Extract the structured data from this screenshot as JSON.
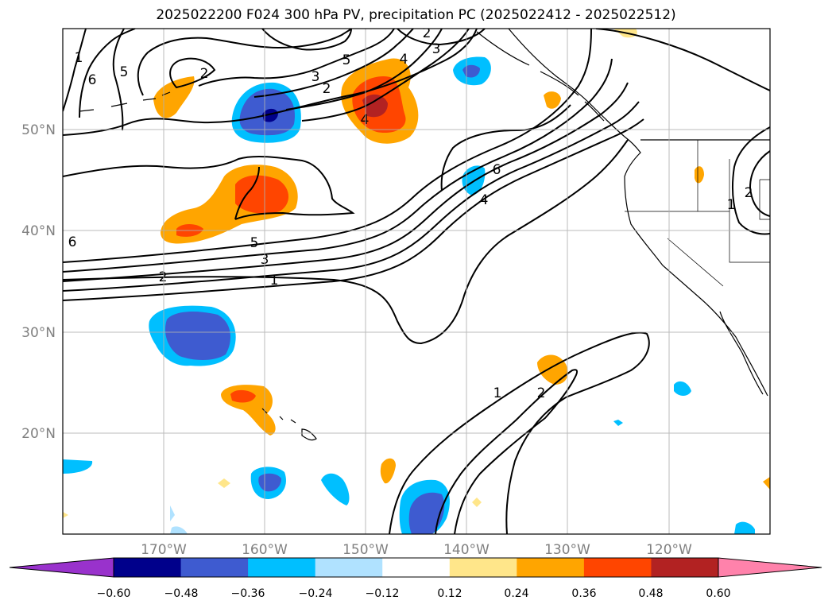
{
  "figure": {
    "title": "2025022200 F024 300 hPa PV, precipitation PC (2025022412 - 2025022512)"
  },
  "map": {
    "projection": "PlateCarree",
    "lon_range": [
      -180,
      -110
    ],
    "lat_range": [
      10,
      60
    ],
    "lon_ticks": [
      "170°W",
      "160°W",
      "150°W",
      "140°W",
      "130°W",
      "120°W"
    ],
    "lat_ticks": [
      "50°N",
      "40°N",
      "30°N",
      "20°N"
    ],
    "grid": true,
    "tick_label_color": "#808080"
  },
  "pv_contours": {
    "color": "#000000",
    "labels": [
      "6",
      "5",
      "3",
      "2",
      "1",
      "6",
      "5",
      "3",
      "2",
      "1",
      "2",
      "3",
      "4",
      "5",
      "2",
      "4",
      "6",
      "4",
      "1",
      "2",
      "1",
      "2"
    ]
  },
  "precip_fill": {
    "levels": [
      -0.6,
      -0.48,
      -0.36,
      -0.24,
      -0.12,
      0.12,
      0.24,
      0.36,
      0.48,
      0.6
    ],
    "colors": [
      "#9932cc",
      "#00008b",
      "#3e5bd0",
      "#00bfff",
      "#b0e2ff",
      "#ffffff",
      "#ffe68a",
      "#ffa500",
      "#ff4500",
      "#b22222",
      "#ff82ab"
    ]
  },
  "colorbar": {
    "tick_labels": [
      "−0.60",
      "−0.48",
      "−0.36",
      "−0.24",
      "−0.12",
      "0.12",
      "0.24",
      "0.36",
      "0.48",
      "0.60"
    ],
    "extend": "both"
  }
}
